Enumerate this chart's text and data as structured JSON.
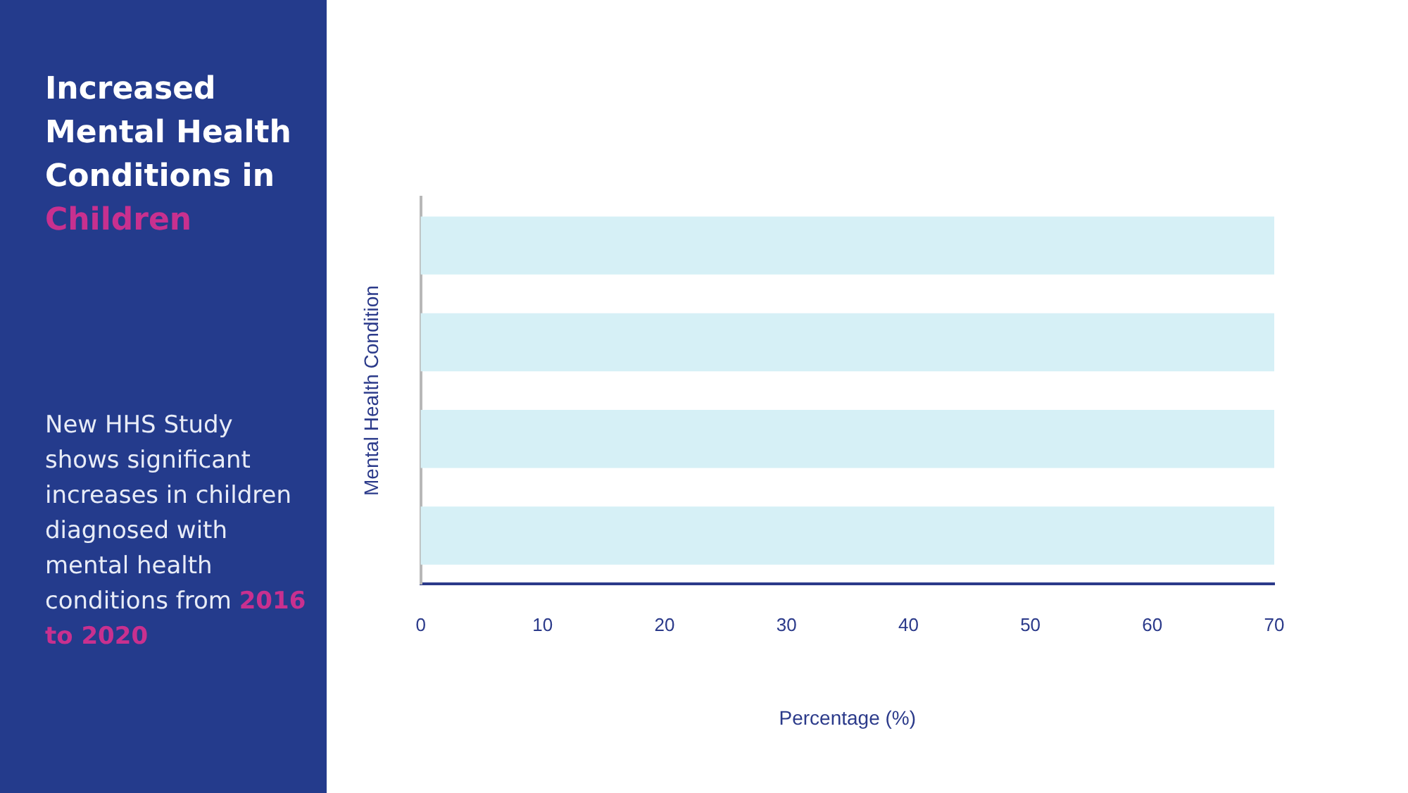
{
  "chart_data": {
    "type": "bar",
    "orientation": "horizontal",
    "title": "Increased Mental Health Conditions in Children",
    "subtitle": "New HHS Study shows significant increases in children diagnosed with mental health conditions from",
    "annotations": [
      "2016 to 2020"
    ],
    "xlabel": "Percentage (%)",
    "ylabel": "Mental Health Condition",
    "categories": [
      null,
      null,
      null,
      null
    ],
    "values": [
      70,
      70,
      70,
      70
    ],
    "color": "#d6f0f6",
    "xlim": [
      0,
      70
    ],
    "xticks": [
      0,
      10,
      20,
      30,
      40,
      50,
      60,
      70
    ],
    "grid": false,
    "legend": false
  }
}
